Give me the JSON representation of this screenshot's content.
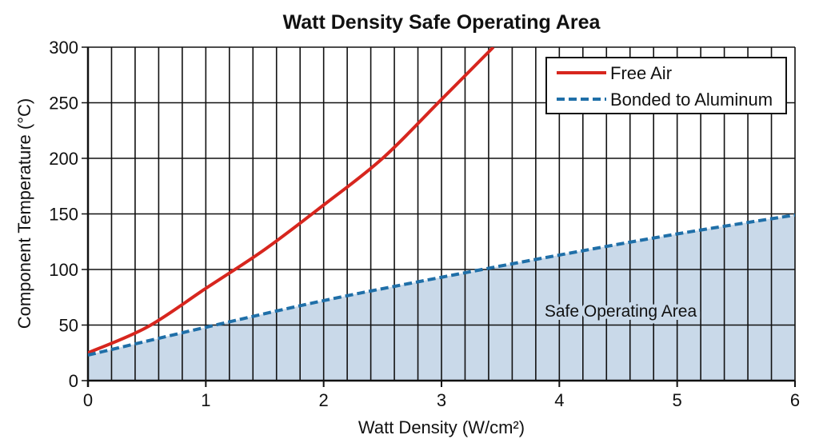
{
  "chart_data": {
    "type": "line",
    "title": "Watt Density Safe Operating Area",
    "xlabel": "Watt Density (W/cm²)",
    "ylabel": "Component Temperature (°C)",
    "xlim": [
      0,
      6
    ],
    "ylim": [
      0,
      300
    ],
    "xticks": [
      0,
      1,
      2,
      3,
      4,
      5,
      6
    ],
    "yticks": [
      0,
      50,
      100,
      150,
      200,
      250,
      300
    ],
    "grid": {
      "on": true,
      "x_minor_step": 0.2,
      "y_step": 50
    },
    "legend": "top-right",
    "series": [
      {
        "name": "Free Air",
        "style": "solid",
        "color": "#d7261e",
        "x": [
          0,
          0.5,
          1,
          1.5,
          2,
          2.5,
          3,
          3.44
        ],
        "y": [
          25,
          48,
          83,
          118,
          158,
          200,
          253,
          300
        ]
      },
      {
        "name": "Bonded to Aluminum",
        "style": "dashed",
        "color": "#1f6fa8",
        "x": [
          0,
          1,
          2,
          3,
          4,
          5,
          6
        ],
        "y": [
          23,
          48,
          72,
          93,
          113,
          132,
          149
        ]
      }
    ],
    "shaded_region": {
      "label": "Safe Operating Area",
      "below_series": "Bonded to Aluminum",
      "color": "#c9d9e9"
    }
  }
}
